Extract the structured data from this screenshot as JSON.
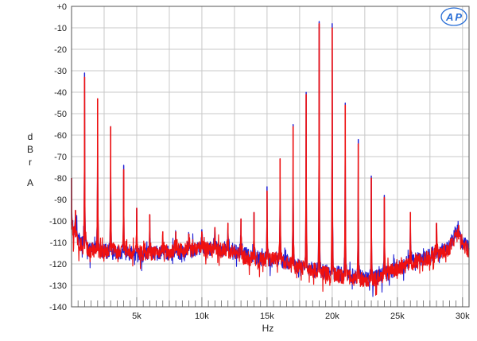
{
  "brand": {
    "logo_text": "AP"
  },
  "chart_data": {
    "type": "line",
    "xlabel": "Hz",
    "ylabel": [
      "d",
      "B",
      "r",
      "A"
    ],
    "xlim": [
      0,
      30500
    ],
    "ylim": [
      -140,
      0
    ],
    "x_ticks": [
      {
        "value": 5000,
        "label": "5k"
      },
      {
        "value": 10000,
        "label": "10k"
      },
      {
        "value": 15000,
        "label": "15k"
      },
      {
        "value": 20000,
        "label": "20k"
      },
      {
        "value": 25000,
        "label": "25k"
      },
      {
        "value": 30000,
        "label": "30k"
      }
    ],
    "y_ticks": [
      {
        "value": 0,
        "label": "+0"
      },
      {
        "value": -10,
        "label": "-10"
      },
      {
        "value": -20,
        "label": "-20"
      },
      {
        "value": -30,
        "label": "-30"
      },
      {
        "value": -40,
        "label": "-40"
      },
      {
        "value": -50,
        "label": "-50"
      },
      {
        "value": -60,
        "label": "-60"
      },
      {
        "value": -70,
        "label": "-70"
      },
      {
        "value": -80,
        "label": "-80"
      },
      {
        "value": -90,
        "label": "-90"
      },
      {
        "value": -100,
        "label": "-100"
      },
      {
        "value": -110,
        "label": "-110"
      },
      {
        "value": -120,
        "label": "-120"
      },
      {
        "value": -130,
        "label": "-130"
      },
      {
        "value": -140,
        "label": "-140"
      }
    ],
    "grid": true,
    "colors": {
      "blue": "#1f1fd6",
      "red": "#ee1111",
      "grid": "#c8c8c8",
      "logo": "#2a6fd6"
    },
    "series": [
      {
        "color": "blue",
        "floor": [
          [
            0,
            -102
          ],
          [
            500,
            -108
          ],
          [
            1000,
            -112
          ],
          [
            2000,
            -114
          ],
          [
            4000,
            -115
          ],
          [
            6000,
            -115
          ],
          [
            8000,
            -115
          ],
          [
            10000,
            -113
          ],
          [
            12000,
            -113
          ],
          [
            14000,
            -117
          ],
          [
            16000,
            -118
          ],
          [
            17000,
            -120
          ],
          [
            18000,
            -122
          ],
          [
            19000,
            -123
          ],
          [
            20000,
            -124
          ],
          [
            21000,
            -125
          ],
          [
            22000,
            -126
          ],
          [
            23000,
            -127
          ],
          [
            24000,
            -125
          ],
          [
            25000,
            -122
          ],
          [
            26000,
            -119
          ],
          [
            27000,
            -117
          ],
          [
            28000,
            -115
          ],
          [
            29000,
            -112
          ],
          [
            29500,
            -105
          ],
          [
            30000,
            -110
          ],
          [
            30500,
            -113
          ]
        ],
        "peaks": [
          [
            0,
            -80
          ],
          [
            300,
            -95
          ],
          [
            1000,
            -31
          ],
          [
            2000,
            -43
          ],
          [
            3000,
            -56
          ],
          [
            4000,
            -74
          ],
          [
            5000,
            -94
          ],
          [
            6000,
            -97
          ],
          [
            7000,
            -105
          ],
          [
            8000,
            -105
          ],
          [
            9000,
            -106
          ],
          [
            10000,
            -104
          ],
          [
            11000,
            -103
          ],
          [
            12000,
            -101
          ],
          [
            13000,
            -99
          ],
          [
            14000,
            -96
          ],
          [
            15000,
            -84
          ],
          [
            16000,
            -71
          ],
          [
            17000,
            -55
          ],
          [
            18000,
            -40
          ],
          [
            19000,
            -7
          ],
          [
            20000,
            -8
          ],
          [
            21000,
            -45
          ],
          [
            22000,
            -62
          ],
          [
            23000,
            -79
          ],
          [
            24000,
            -88
          ],
          [
            26000,
            -96
          ],
          [
            28000,
            -101
          ],
          [
            29700,
            -102
          ]
        ]
      },
      {
        "color": "red",
        "floor": [
          [
            0,
            -104
          ],
          [
            500,
            -110
          ],
          [
            1000,
            -113
          ],
          [
            2000,
            -114
          ],
          [
            4000,
            -114
          ],
          [
            6000,
            -115
          ],
          [
            8000,
            -114
          ],
          [
            10000,
            -113
          ],
          [
            12000,
            -114
          ],
          [
            14000,
            -118
          ],
          [
            16000,
            -118
          ],
          [
            17000,
            -121
          ],
          [
            18000,
            -122
          ],
          [
            19000,
            -124
          ],
          [
            20000,
            -125
          ],
          [
            21000,
            -126
          ],
          [
            22000,
            -127
          ],
          [
            23000,
            -128
          ],
          [
            24000,
            -125
          ],
          [
            25000,
            -122
          ],
          [
            26000,
            -120
          ],
          [
            27000,
            -118
          ],
          [
            28000,
            -116
          ],
          [
            29000,
            -113
          ],
          [
            29500,
            -107
          ],
          [
            30000,
            -111
          ],
          [
            30500,
            -114
          ]
        ],
        "peaks": [
          [
            0,
            -80
          ],
          [
            300,
            -95
          ],
          [
            1000,
            -33
          ],
          [
            2000,
            -43
          ],
          [
            3000,
            -56
          ],
          [
            4000,
            -76
          ],
          [
            5000,
            -94
          ],
          [
            6000,
            -97
          ],
          [
            7000,
            -105
          ],
          [
            8000,
            -105
          ],
          [
            9000,
            -106
          ],
          [
            10000,
            -105
          ],
          [
            11000,
            -103
          ],
          [
            12000,
            -101
          ],
          [
            13000,
            -99
          ],
          [
            14000,
            -96
          ],
          [
            15000,
            -86
          ],
          [
            16000,
            -71
          ],
          [
            17000,
            -56
          ],
          [
            18000,
            -41
          ],
          [
            19000,
            -8
          ],
          [
            20000,
            -10
          ],
          [
            21000,
            -46
          ],
          [
            22000,
            -64
          ],
          [
            23000,
            -80
          ],
          [
            24000,
            -89
          ],
          [
            26000,
            -96
          ],
          [
            28000,
            -101
          ],
          [
            29700,
            -102
          ]
        ]
      }
    ]
  }
}
